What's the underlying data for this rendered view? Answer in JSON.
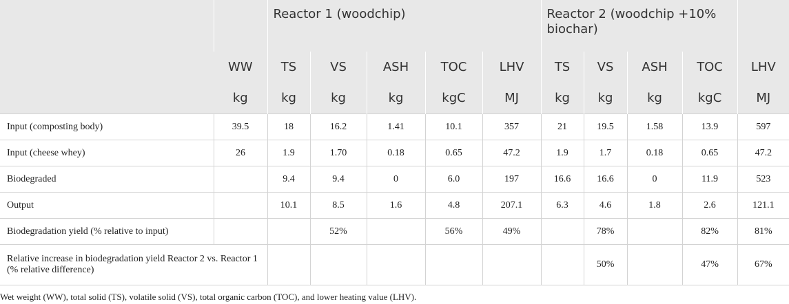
{
  "header": {
    "group1": "Reactor 1 (woodchip)",
    "group2": "Reactor 2 (woodchip +10% biochar)",
    "columns": [
      "WW",
      "TS",
      "VS",
      "ASH",
      "TOC",
      "LHV",
      "TS",
      "VS",
      "ASH",
      "TOC",
      "LHV"
    ],
    "units": [
      "kg",
      "kg",
      "kg",
      "kg",
      "kgC",
      "MJ",
      "kg",
      "kg",
      "kg",
      "kgC",
      "MJ"
    ]
  },
  "table": {
    "rows": [
      {
        "label": "Input (composting body)",
        "cells": [
          "39.5",
          "18",
          "16.2",
          "1.41",
          "10.1",
          "357",
          "21",
          "19.5",
          "1.58",
          "13.9",
          "597"
        ]
      },
      {
        "label": "Input (cheese whey)",
        "cells": [
          "26",
          "1.9",
          "1.70",
          "0.18",
          "0.65",
          "47.2",
          "1.9",
          "1.7",
          "0.18",
          "0.65",
          "47.2"
        ]
      },
      {
        "label": "Biodegraded",
        "cells": [
          null,
          "9.4",
          "9.4",
          "0",
          "6.0",
          "197",
          "16.6",
          "16.6",
          "0",
          "11.9",
          "523"
        ]
      },
      {
        "label": "Output",
        "cells": [
          null,
          "10.1",
          "8.5",
          "1.6",
          "4.8",
          "207.1",
          "6.3",
          "4.6",
          "1.8",
          "2.6",
          "121.1"
        ]
      },
      {
        "label": "Biodegradation yield (% relative to input)",
        "cells": [
          null,
          null,
          "52%",
          null,
          "56%",
          "49%",
          null,
          "78%",
          null,
          "82%",
          "81%"
        ]
      },
      {
        "label": "Relative increase in biodegradation yield Reactor 2 vs. Reactor 1 (% relative difference)",
        "span": 2,
        "cells": [
          null,
          null,
          null,
          null,
          null,
          null,
          "50%",
          null,
          "47%",
          "67%"
        ]
      }
    ]
  },
  "footnote": "Wet weight (WW), total solid (TS), volatile solid (VS), total organic carbon (TOC), and lower heating value (LHV)."
}
